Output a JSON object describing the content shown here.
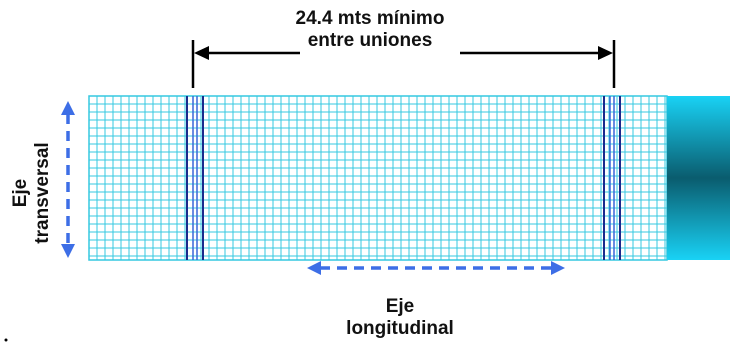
{
  "labels": {
    "span_line1": "24.4 mts mínimo",
    "span_line2": "entre  uniones",
    "transverse_line1": "Eje",
    "transverse_line2": "transversal",
    "longitudinal_line1": "Eje",
    "longitudinal_line2": "longitudinal"
  },
  "colors": {
    "grid_line": "#35c8e0",
    "joint_line_dark": "#1a2a8c",
    "joint_line_light": "#3a66d8",
    "dashed_arrow": "#3d6ee6",
    "dimension_line": "#000000",
    "end_gradient_outer": "#19d2f5",
    "end_gradient_center": "#0a5c6e"
  }
}
